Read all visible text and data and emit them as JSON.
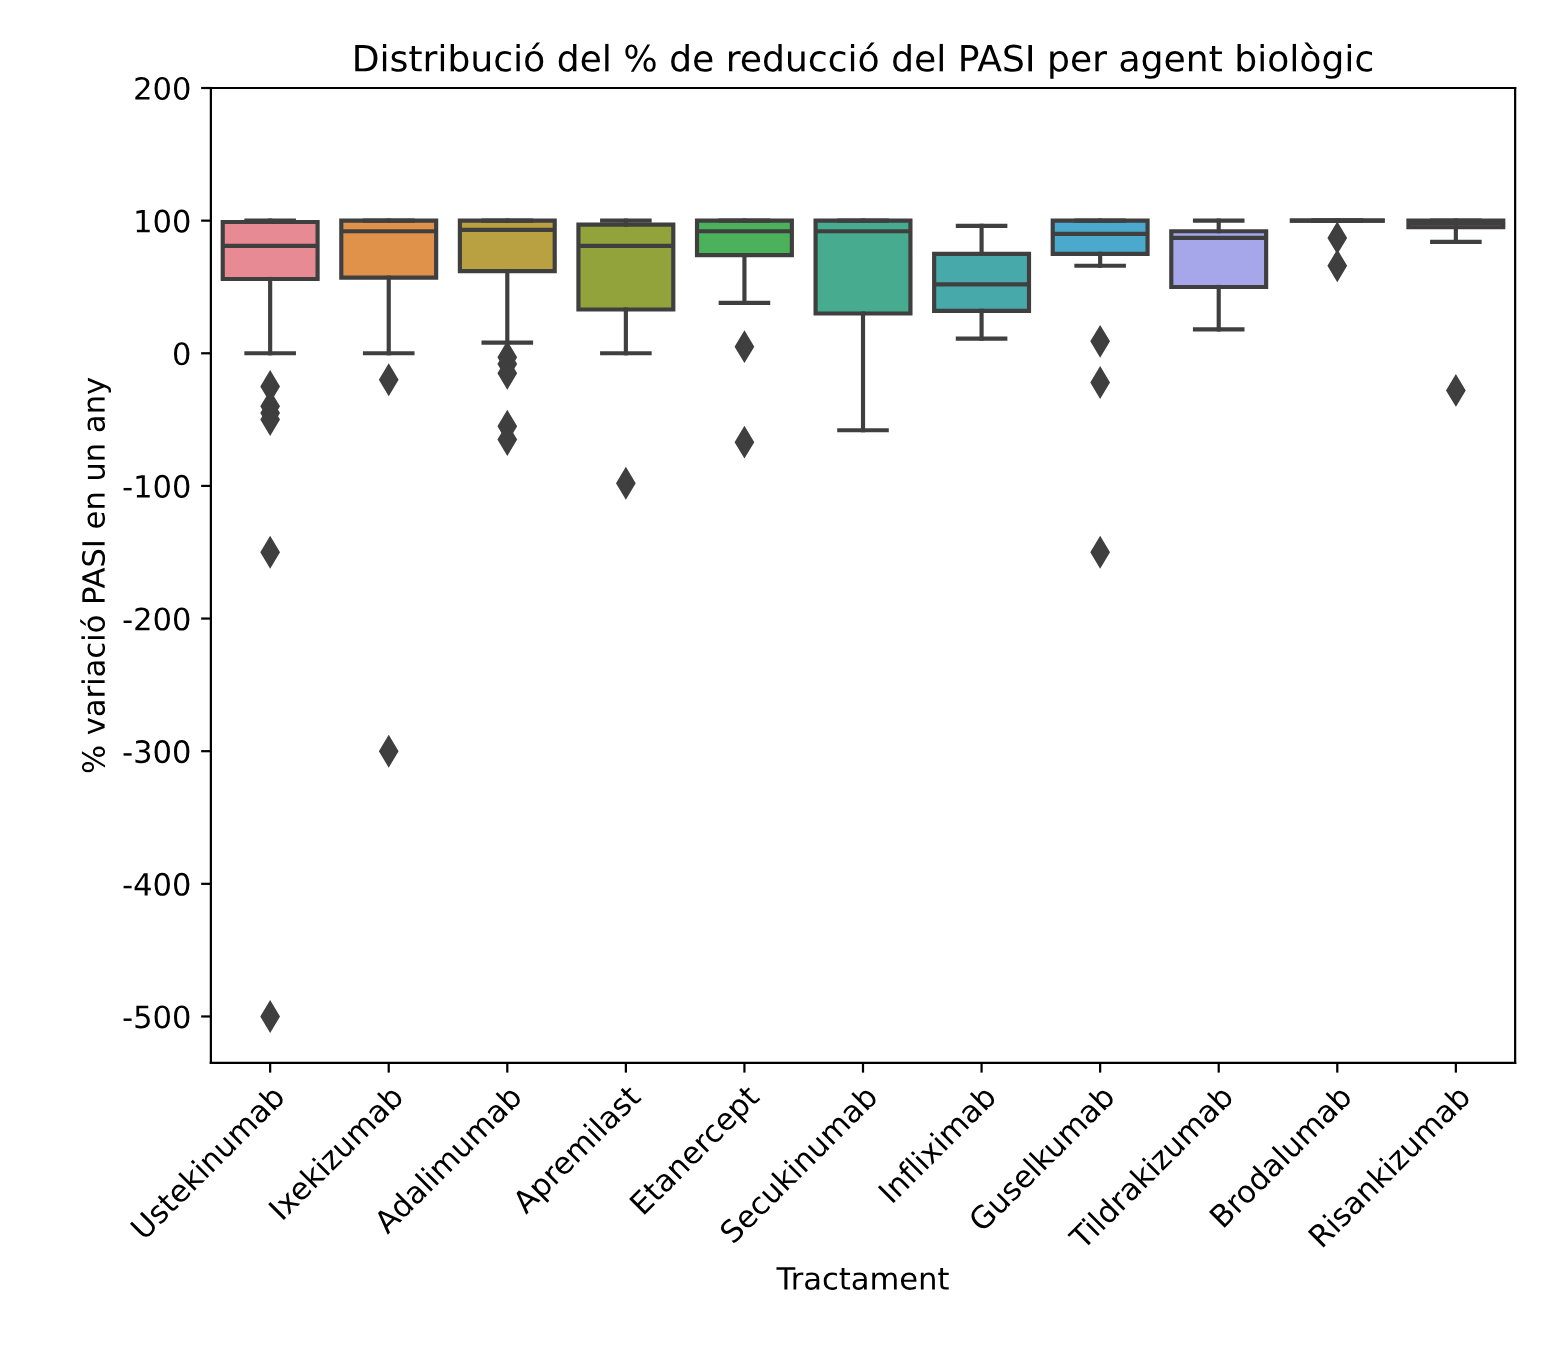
{
  "chart_data": {
    "type": "box",
    "title": "Distribució del % de reducció del PASI per agent biològic",
    "xlabel": "Tractament",
    "ylabel": "% variació PASI en un any",
    "categories": [
      "Ustekinumab",
      "Ixekizumab",
      "Adalimumab",
      "Apremilast",
      "Etanercept",
      "Secukinumab",
      "Infliximab",
      "Guselkumab",
      "Tildrakizumab",
      "Brodalumab",
      "Risankizumab"
    ],
    "colors": [
      "#e88a94",
      "#e0924a",
      "#b9a040",
      "#93a33c",
      "#4bb15a",
      "#47ab8f",
      "#48a9aa",
      "#4aa9cd",
      "#a6a6eb",
      "#3f3f3f",
      "#e78fc4"
    ],
    "boxes": [
      {
        "low": 0,
        "q1": 56,
        "median": 81,
        "q3": 99,
        "high": 100,
        "outliers": [
          -25,
          -40,
          -45,
          -50,
          -150,
          -500
        ]
      },
      {
        "low": 0,
        "q1": 57,
        "median": 92,
        "q3": 100,
        "high": 100,
        "outliers": [
          -20,
          -300
        ]
      },
      {
        "low": 8,
        "q1": 62,
        "median": 93,
        "q3": 100,
        "high": 100,
        "outliers": [
          -3,
          -8,
          -15,
          -55,
          -65
        ]
      },
      {
        "low": 0,
        "q1": 33,
        "median": 81,
        "q3": 97,
        "high": 100,
        "outliers": [
          -98
        ]
      },
      {
        "low": 38,
        "q1": 74,
        "median": 92,
        "q3": 100,
        "high": 100,
        "outliers": [
          5,
          -67
        ]
      },
      {
        "low": -58,
        "q1": 30,
        "median": 92,
        "q3": 100,
        "high": 100
      },
      {
        "low": 11,
        "q1": 32,
        "median": 52,
        "q3": 75,
        "high": 96
      },
      {
        "low": 66,
        "q1": 75,
        "median": 90,
        "q3": 100,
        "high": 100,
        "outliers": [
          9,
          -22,
          -150
        ]
      },
      {
        "low": 18,
        "q1": 50,
        "median": 87,
        "q3": 92,
        "high": 100
      },
      {
        "low": 100,
        "q1": 100,
        "median": 100,
        "q3": 100,
        "high": 100,
        "outliers": [
          87,
          66
        ]
      },
      {
        "low": 84,
        "q1": 95,
        "median": 98,
        "q3": 100,
        "high": 100,
        "outliers": [
          -28
        ]
      }
    ],
    "ylim": [
      -535,
      200
    ],
    "yticks": [
      -500,
      -400,
      -300,
      -200,
      -100,
      0,
      100,
      200
    ],
    "grid": false,
    "legend": false
  }
}
